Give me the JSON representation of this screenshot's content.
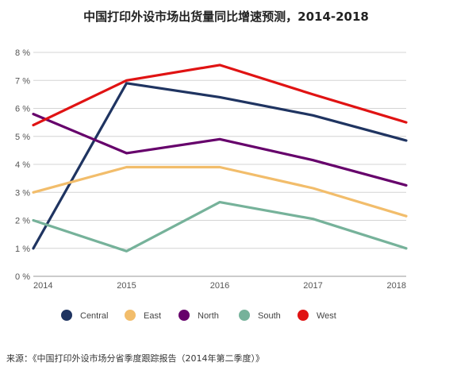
{
  "chart_data": {
    "type": "line",
    "title": "中国打印外设市场出货量同比增速预测，2014-2018",
    "source": "来源：《中国打印外设市场分省季度跟踪报告（2014年第二季度）》",
    "x": [
      "2014",
      "2015",
      "2016",
      "2017",
      "2018"
    ],
    "ylim": [
      0,
      8
    ],
    "y_ticks": [
      "0 %",
      "1 %",
      "2 %",
      "3 %",
      "4 %",
      "5 %",
      "6 %",
      "7 %",
      "8 %"
    ],
    "grid": true,
    "legend_position": "bottom",
    "series": [
      {
        "name": "Central",
        "color": "#1f3461",
        "values": [
          1.0,
          6.9,
          6.4,
          5.75,
          4.85
        ]
      },
      {
        "name": "East",
        "color": "#f2bd6b",
        "values": [
          3.0,
          3.9,
          3.9,
          3.15,
          2.15
        ]
      },
      {
        "name": "North",
        "color": "#66006b",
        "values": [
          5.8,
          4.4,
          4.9,
          4.15,
          3.25
        ]
      },
      {
        "name": "South",
        "color": "#76b29a",
        "values": [
          2.0,
          0.9,
          2.65,
          2.05,
          1.0
        ]
      },
      {
        "name": "West",
        "color": "#e01313",
        "values": [
          5.4,
          7.0,
          7.55,
          6.5,
          5.5
        ]
      }
    ]
  }
}
